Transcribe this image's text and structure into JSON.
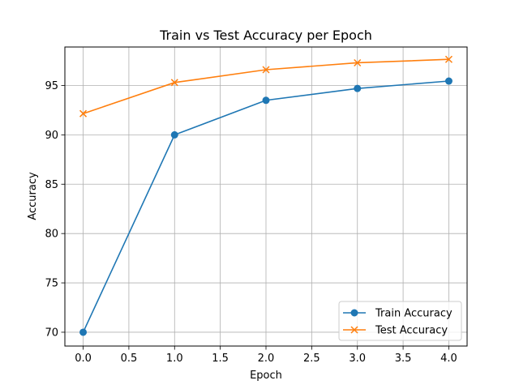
{
  "chart_data": {
    "type": "line",
    "title": "Train vs Test Accuracy per Epoch",
    "xlabel": "Epoch",
    "ylabel": "Accuracy",
    "x": [
      0,
      1,
      2,
      3,
      4
    ],
    "xlim": [
      -0.2,
      4.2
    ],
    "ylim": [
      68.6,
      98.9
    ],
    "xticks": [
      0.0,
      0.5,
      1.0,
      1.5,
      2.0,
      2.5,
      3.0,
      3.5,
      4.0
    ],
    "xtick_labels": [
      "0.0",
      "0.5",
      "1.0",
      "1.5",
      "2.0",
      "2.5",
      "3.0",
      "3.5",
      "4.0"
    ],
    "yticks": [
      70,
      75,
      80,
      85,
      90,
      95
    ],
    "ytick_labels": [
      "70",
      "75",
      "80",
      "85",
      "90",
      "95"
    ],
    "grid": true,
    "legend_position": "lower-right",
    "series": [
      {
        "name": "Train Accuracy",
        "values": [
          70.0,
          90.0,
          93.5,
          94.7,
          95.45
        ],
        "color": "#1f77b4",
        "marker": "circle"
      },
      {
        "name": "Test Accuracy",
        "values": [
          92.15,
          95.3,
          96.6,
          97.3,
          97.65
        ],
        "color": "#ff7f0e",
        "marker": "x"
      }
    ]
  }
}
